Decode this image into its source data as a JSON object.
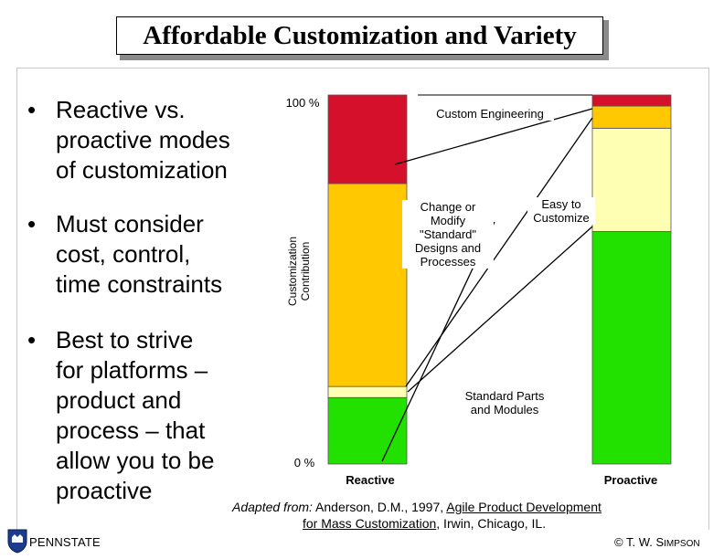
{
  "title": "Affordable Customization and Variety",
  "bullets": [
    "Reactive vs.\nproactive modes\nof customization",
    "Must consider\ncost, control,\ntime constraints",
    "Best to strive\nfor platforms –\nproduct and\nprocess – that\nallow you to be\nproactive"
  ],
  "bullet_symbol": "•",
  "chart": {
    "y_axis_title": "Customization\nContribution",
    "y_top_label": "100 %",
    "y_bottom_label": "0 %",
    "label_custom_engineering": "Custom Engineering",
    "label_change_modify": "Change or\nModify\n\"Standard\"\nDesigns and\nProcesses",
    "label_easy": "Easy to\nCustomize",
    "label_standard": "Standard Parts\nand Modules",
    "colors": {
      "custom": "#d4102a",
      "modify": "#ffc800",
      "easy": "#ffffb4",
      "standard": "#22e000"
    }
  },
  "chart_data": {
    "type": "bar",
    "stacked": true,
    "ylabel": "Customization\nContribution",
    "ylim": [
      0,
      100
    ],
    "categories": [
      "Reactive",
      "Proactive"
    ],
    "series": [
      {
        "name": "Standard Parts and Modules",
        "values": [
          18,
          63
        ]
      },
      {
        "name": "Easy to Customize",
        "values": [
          3,
          28
        ]
      },
      {
        "name": "Change or Modify \"Standard\" Designs and Processes",
        "values": [
          55,
          6
        ]
      },
      {
        "name": "Custom Engineering",
        "values": [
          24,
          3
        ]
      }
    ]
  },
  "citation": {
    "prefix": "Adapted from:",
    "authors": " Anderson, D.M., 1997, ",
    "book_title_1": "Agile Product Development",
    "book_title_2": "for Mass Customization",
    "publisher": ", Irwin, Chicago, IL."
  },
  "footer": {
    "institution": "PENNSTATE",
    "copyright_symbol": "©",
    "author_initials": "T. W. ",
    "author_s": "S",
    "author_rest": "IMPSON"
  }
}
